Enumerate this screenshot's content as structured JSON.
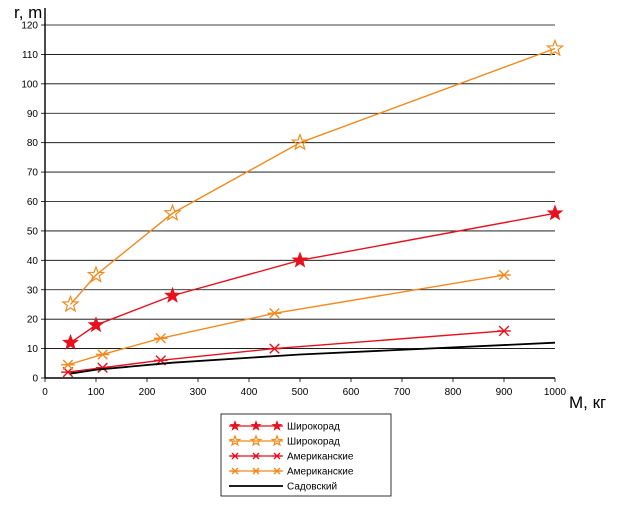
{
  "chart_data": {
    "type": "line",
    "title": "",
    "xlabel": "M, кг",
    "ylabel": "r, m",
    "xlim": [
      0,
      1000
    ],
    "ylim": [
      0,
      120
    ],
    "x_ticks": [
      0,
      100,
      200,
      300,
      400,
      500,
      600,
      700,
      800,
      900,
      1000
    ],
    "y_ticks": [
      0,
      10,
      20,
      30,
      40,
      50,
      60,
      70,
      80,
      90,
      100,
      110,
      120
    ],
    "grid": "horizontal",
    "legend_position": "bottom",
    "series": [
      {
        "name": "Широкорад",
        "color": "#e8101c",
        "marker": "filled-star",
        "x": [
          50,
          100,
          250,
          500,
          1000
        ],
        "y": [
          12,
          18,
          28,
          40,
          56
        ]
      },
      {
        "name": "Широкорад",
        "color": "#f28a1d",
        "marker": "hollow-star",
        "x": [
          50,
          100,
          250,
          500,
          1000
        ],
        "y": [
          25,
          35,
          56,
          80,
          112
        ]
      },
      {
        "name": "Американские",
        "color": "#e8101c",
        "marker": "asterisk",
        "x": [
          45,
          113,
          227,
          450,
          900
        ],
        "y": [
          2,
          3.5,
          6,
          10,
          16
        ]
      },
      {
        "name": "Американские",
        "color": "#f28a1d",
        "marker": "asterisk",
        "x": [
          45,
          113,
          227,
          450,
          900
        ],
        "y": [
          4.5,
          8,
          13.5,
          22,
          35
        ]
      },
      {
        "name": "Садовский",
        "color": "#000000",
        "marker": "none",
        "x": [
          50,
          100,
          250,
          500,
          1000
        ],
        "y": [
          1.5,
          2.8,
          5.2,
          8,
          12
        ]
      }
    ]
  }
}
